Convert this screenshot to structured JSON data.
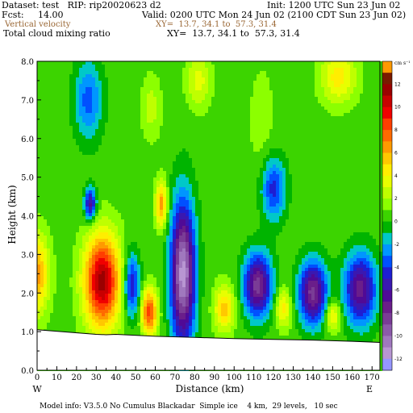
{
  "header": {
    "dataset": "Dataset: test   RIP: rip20020623 d2",
    "init": "Init: 1200 UTC Sun 23 Jun 02",
    "fcst": "Fcst:     14.00",
    "valid": "Valid: 0200 UTC Mon 24 Jun 02 (2100 CDT Sun 23 Jun 02)",
    "field1": "Vertical velocity",
    "xy1": "XY=  13.7, 34.1 to  57.3, 31.4",
    "field2": "Total cloud mixing ratio",
    "xy2": "XY=  13.7, 34.1 to  57.3, 31.4"
  },
  "footer": {
    "model_info": "Model info: V3.5.0 No Cumulus Blackadar  Simple ice    4 km,  29 levels,   10 sec"
  },
  "colors": {
    "contour_field": "#996633"
  },
  "chart_data": {
    "type": "heatmap",
    "xlabel": "Distance (km)",
    "ylabel": "Height (km)",
    "x_ticks": [
      0,
      10,
      20,
      30,
      40,
      50,
      60,
      70,
      80,
      90,
      100,
      110,
      120,
      130,
      140,
      150,
      160,
      170
    ],
    "y_ticks": [
      "0.0",
      "1.0",
      "2.0",
      "3.0",
      "4.0",
      "5.0",
      "6.0",
      "7.0",
      "8.0"
    ],
    "xlim": [
      0,
      174
    ],
    "ylim": [
      0,
      8
    ],
    "left_end": "W",
    "right_end": "E",
    "colorbar": {
      "unit": "cm s⁻¹",
      "labels": [
        "12",
        "10",
        "8",
        "6",
        "4",
        "2",
        "0",
        "-2",
        "-4",
        "-6",
        "-8",
        "-10",
        "-12"
      ],
      "levels": [
        13,
        12,
        11,
        10,
        9,
        8,
        7,
        6,
        5,
        4,
        3,
        2,
        1,
        0,
        -1,
        -2,
        -3,
        -4,
        -5,
        -6,
        -7,
        -8,
        -9,
        -10,
        -11,
        -12,
        -13
      ],
      "colors": [
        "#ff9900",
        "#7a1a00",
        "#9b0000",
        "#c80000",
        "#f00000",
        "#ff3d00",
        "#ff6a00",
        "#ff9a00",
        "#ffc800",
        "#ffee00",
        "#e8ff00",
        "#bfff00",
        "#8cff00",
        "#3cd400",
        "#00b400",
        "#00c8c8",
        "#0096ff",
        "#0050ff",
        "#1e1ed2",
        "#3a18b0",
        "#500a96",
        "#6a1e8a",
        "#7a3c96",
        "#8c5aaa",
        "#a078be",
        "#b896d2",
        "#9696ff"
      ]
    },
    "terrain": {
      "x": [
        0,
        30,
        35,
        40,
        60,
        80,
        100,
        120,
        140,
        160,
        174
      ],
      "height": [
        1.05,
        0.93,
        0.92,
        0.93,
        0.88,
        0.85,
        0.82,
        0.8,
        0.78,
        0.75,
        0.72
      ]
    },
    "features": [
      {
        "x": 33,
        "z": 2.3,
        "rx": 9,
        "rz": 1.2,
        "peak": 11,
        "label": "updraft"
      },
      {
        "x": 74,
        "z": 2.5,
        "rx": 6,
        "rz": 1.8,
        "peak": -12,
        "label": "downdraft"
      },
      {
        "x": 0,
        "z": 2.5,
        "rx": 6,
        "rz": 1.0,
        "peak": 6
      },
      {
        "x": 57,
        "z": 1.5,
        "rx": 4,
        "rz": 0.6,
        "peak": 8
      },
      {
        "x": 48,
        "z": 2.2,
        "rx": 4,
        "rz": 0.8,
        "peak": -6
      },
      {
        "x": 95,
        "z": 1.6,
        "rx": 5,
        "rz": 0.6,
        "peak": 5
      },
      {
        "x": 112,
        "z": 2.2,
        "rx": 7,
        "rz": 0.8,
        "peak": -9
      },
      {
        "x": 125,
        "z": 1.6,
        "rx": 4,
        "rz": 0.5,
        "peak": 4
      },
      {
        "x": 140,
        "z": 2.0,
        "rx": 7,
        "rz": 0.8,
        "peak": -9
      },
      {
        "x": 164,
        "z": 2.1,
        "rx": 8,
        "rz": 0.9,
        "peak": -8
      },
      {
        "x": 150,
        "z": 1.4,
        "rx": 4,
        "rz": 0.4,
        "peak": 4
      },
      {
        "x": 27,
        "z": 4.3,
        "rx": 3,
        "rz": 0.4,
        "peak": -7
      },
      {
        "x": 63,
        "z": 4.3,
        "rx": 3,
        "rz": 0.6,
        "peak": 6
      },
      {
        "x": 58,
        "z": 6.8,
        "rx": 5,
        "rz": 0.8,
        "peak": 2
      },
      {
        "x": 82,
        "z": 7.5,
        "rx": 6,
        "rz": 0.7,
        "peak": 3
      },
      {
        "x": 153,
        "z": 7.6,
        "rx": 9,
        "rz": 0.7,
        "peak": 4
      },
      {
        "x": 114,
        "z": 6.5,
        "rx": 7,
        "rz": 1.5,
        "peak": 1
      },
      {
        "x": 26,
        "z": 7.0,
        "rx": 7,
        "rz": 1.0,
        "peak": -4
      },
      {
        "x": 120,
        "z": 4.7,
        "rx": 6,
        "rz": 0.8,
        "peak": -5
      }
    ]
  }
}
